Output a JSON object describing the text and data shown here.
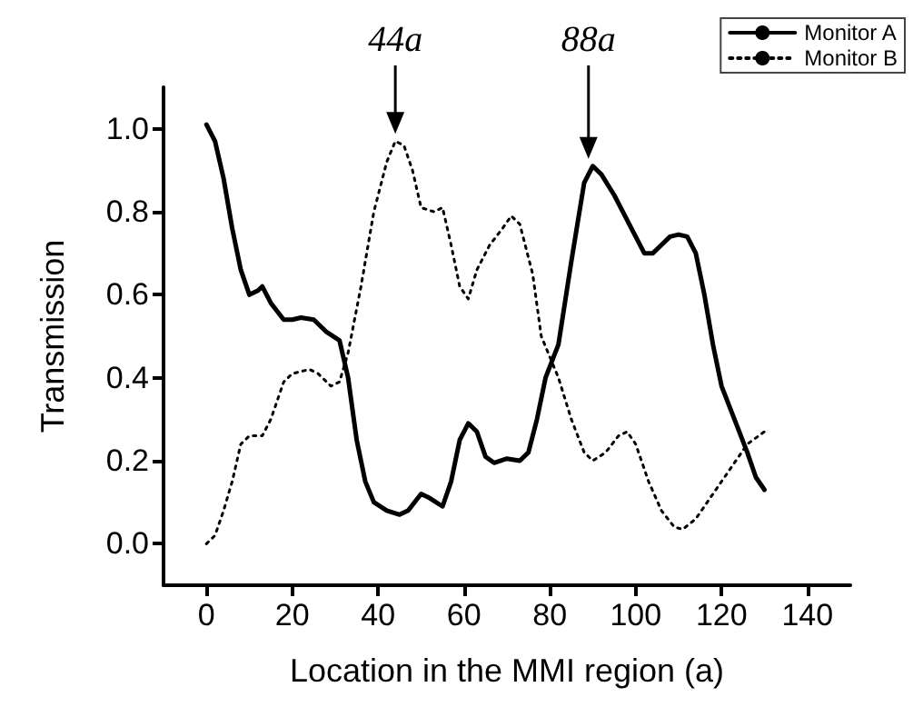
{
  "chart_data": {
    "type": "line",
    "xlabel": "Location in the MMI region (a)",
    "ylabel": "Transmission",
    "xlim": [
      -10,
      150
    ],
    "xticks": [
      0,
      20,
      40,
      60,
      80,
      100,
      120,
      140
    ],
    "ylim": [
      -0.1,
      1.1
    ],
    "yticks": [
      {
        "value": 0,
        "label": "0.0"
      },
      {
        "value": 0.2,
        "label": "0.2"
      },
      {
        "value": 0.4,
        "label": "0.4"
      },
      {
        "value": 0.6,
        "label": "0.6"
      },
      {
        "value": 0.8,
        "label": "0.8"
      },
      {
        "value": 1,
        "label": "1.0"
      }
    ],
    "grid": false,
    "legend": "top right",
    "marker": "none",
    "annotations": [
      {
        "text": "44a",
        "x": 44,
        "y": 0.97
      },
      {
        "text": "88a",
        "x": 89,
        "y": 0.91
      }
    ],
    "series": [
      {
        "name": "Monitor A",
        "color": "#000000",
        "line_style": "solid",
        "x": [
          0,
          2,
          4,
          6,
          8,
          10,
          12,
          13,
          15,
          18,
          20,
          22,
          25,
          28,
          31,
          33,
          35,
          37,
          39,
          42,
          45,
          47,
          50,
          52,
          55,
          57,
          59,
          61,
          63,
          65,
          67,
          70,
          73,
          75,
          77,
          79,
          82,
          85,
          88,
          90,
          92,
          95,
          98,
          100,
          102,
          104,
          106,
          108,
          110,
          112,
          114,
          116,
          118,
          120,
          123,
          126,
          128,
          130
        ],
        "values": [
          1.01,
          0.97,
          0.88,
          0.76,
          0.66,
          0.6,
          0.61,
          0.62,
          0.58,
          0.54,
          0.54,
          0.545,
          0.54,
          0.51,
          0.49,
          0.4,
          0.25,
          0.15,
          0.1,
          0.08,
          0.07,
          0.08,
          0.12,
          0.11,
          0.09,
          0.15,
          0.25,
          0.29,
          0.27,
          0.21,
          0.195,
          0.205,
          0.2,
          0.22,
          0.3,
          0.4,
          0.48,
          0.68,
          0.87,
          0.91,
          0.89,
          0.84,
          0.78,
          0.74,
          0.7,
          0.7,
          0.72,
          0.74,
          0.745,
          0.74,
          0.7,
          0.6,
          0.48,
          0.38,
          0.3,
          0.22,
          0.16,
          0.13
        ]
      },
      {
        "name": "Monitor B",
        "color": "#000000",
        "line_style": "dotted",
        "x": [
          0,
          2,
          4,
          6,
          8,
          10,
          13,
          15,
          18,
          20,
          24,
          26,
          29,
          31,
          33,
          36,
          39,
          42,
          44,
          46,
          48,
          50,
          53,
          55,
          57,
          59,
          61,
          63,
          66,
          69,
          71,
          73,
          76,
          78,
          80,
          82,
          85,
          88,
          90,
          93,
          96,
          98,
          100,
          103,
          106,
          109,
          111,
          114,
          118,
          122,
          126,
          130
        ],
        "values": [
          0,
          0.02,
          0.08,
          0.15,
          0.24,
          0.26,
          0.26,
          0.3,
          0.39,
          0.41,
          0.42,
          0.41,
          0.38,
          0.39,
          0.46,
          0.62,
          0.8,
          0.92,
          0.97,
          0.96,
          0.9,
          0.81,
          0.8,
          0.81,
          0.72,
          0.62,
          0.59,
          0.66,
          0.72,
          0.76,
          0.79,
          0.77,
          0.65,
          0.5,
          0.45,
          0.4,
          0.3,
          0.22,
          0.2,
          0.22,
          0.26,
          0.27,
          0.24,
          0.15,
          0.08,
          0.04,
          0.035,
          0.06,
          0.12,
          0.18,
          0.24,
          0.27
        ]
      }
    ]
  }
}
